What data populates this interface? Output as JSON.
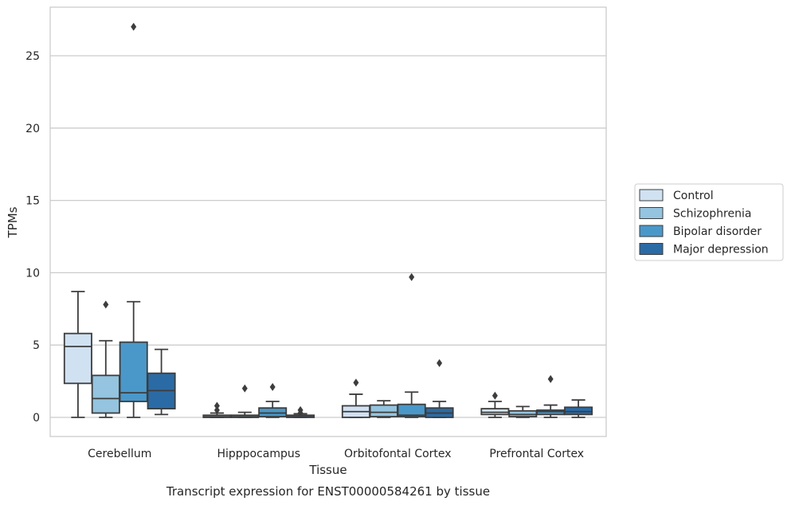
{
  "chart_data": {
    "type": "box",
    "title": "",
    "caption": "Transcript expression for ENST00000584261 by tissue",
    "xlabel": "Tissue",
    "ylabel": "TPMs",
    "ylim": [
      -1.3,
      28.3
    ],
    "yticks": [
      0,
      5,
      10,
      15,
      20,
      25
    ],
    "grid": "horizontal",
    "legend_position": "right",
    "categories": [
      "Cerebellum",
      "Hipppocampus",
      "Orbitofontal Cortex",
      "Prefrontal Cortex"
    ],
    "series": [
      {
        "name": "Control",
        "color": "#d0e1f2",
        "boxes": [
          {
            "whisker_low": 0.0,
            "q1": 2.35,
            "median": 4.9,
            "q3": 5.8,
            "whisker_high": 8.7,
            "outliers": []
          },
          {
            "whisker_low": 0.0,
            "q1": 0.0,
            "median": 0.05,
            "q3": 0.15,
            "whisker_high": 0.3,
            "outliers": [
              0.5,
              0.8
            ]
          },
          {
            "whisker_low": 0.0,
            "q1": 0.0,
            "median": 0.4,
            "q3": 0.8,
            "whisker_high": 1.6,
            "outliers": [
              2.4
            ]
          },
          {
            "whisker_low": 0.0,
            "q1": 0.2,
            "median": 0.35,
            "q3": 0.6,
            "whisker_high": 1.1,
            "outliers": [
              1.5
            ]
          }
        ]
      },
      {
        "name": "Schizophrenia",
        "color": "#94c4df",
        "boxes": [
          {
            "whisker_low": 0.0,
            "q1": 0.3,
            "median": 1.3,
            "q3": 2.9,
            "whisker_high": 5.3,
            "outliers": [
              7.8
            ]
          },
          {
            "whisker_low": 0.0,
            "q1": 0.0,
            "median": 0.05,
            "q3": 0.15,
            "whisker_high": 0.35,
            "outliers": [
              2.0
            ]
          },
          {
            "whisker_low": 0.0,
            "q1": 0.05,
            "median": 0.35,
            "q3": 0.85,
            "whisker_high": 1.15,
            "outliers": []
          },
          {
            "whisker_low": 0.0,
            "q1": 0.05,
            "median": 0.2,
            "q3": 0.45,
            "whisker_high": 0.75,
            "outliers": []
          }
        ]
      },
      {
        "name": "Bipolar disorder",
        "color": "#4a98c9",
        "boxes": [
          {
            "whisker_low": 0.0,
            "q1": 1.1,
            "median": 1.7,
            "q3": 5.2,
            "whisker_high": 8.0,
            "outliers": [
              27.0
            ]
          },
          {
            "whisker_low": 0.0,
            "q1": 0.05,
            "median": 0.3,
            "q3": 0.65,
            "whisker_high": 1.1,
            "outliers": [
              2.1
            ]
          },
          {
            "whisker_low": 0.0,
            "q1": 0.05,
            "median": 0.15,
            "q3": 0.9,
            "whisker_high": 1.75,
            "outliers": [
              9.7
            ]
          },
          {
            "whisker_low": 0.0,
            "q1": 0.2,
            "median": 0.4,
            "q3": 0.5,
            "whisker_high": 0.85,
            "outliers": [
              2.65
            ]
          }
        ]
      },
      {
        "name": "Major depression",
        "color": "#2b6ba5",
        "boxes": [
          {
            "whisker_low": 0.2,
            "q1": 0.6,
            "median": 1.85,
            "q3": 3.05,
            "whisker_high": 4.7,
            "outliers": []
          },
          {
            "whisker_low": 0.0,
            "q1": 0.0,
            "median": 0.05,
            "q3": 0.15,
            "whisker_high": 0.25,
            "outliers": [
              0.3,
              0.5
            ]
          },
          {
            "whisker_low": 0.0,
            "q1": 0.0,
            "median": 0.3,
            "q3": 0.65,
            "whisker_high": 1.1,
            "outliers": [
              3.75
            ]
          },
          {
            "whisker_low": 0.0,
            "q1": 0.2,
            "median": 0.4,
            "q3": 0.7,
            "whisker_high": 1.2,
            "outliers": []
          }
        ]
      }
    ]
  }
}
